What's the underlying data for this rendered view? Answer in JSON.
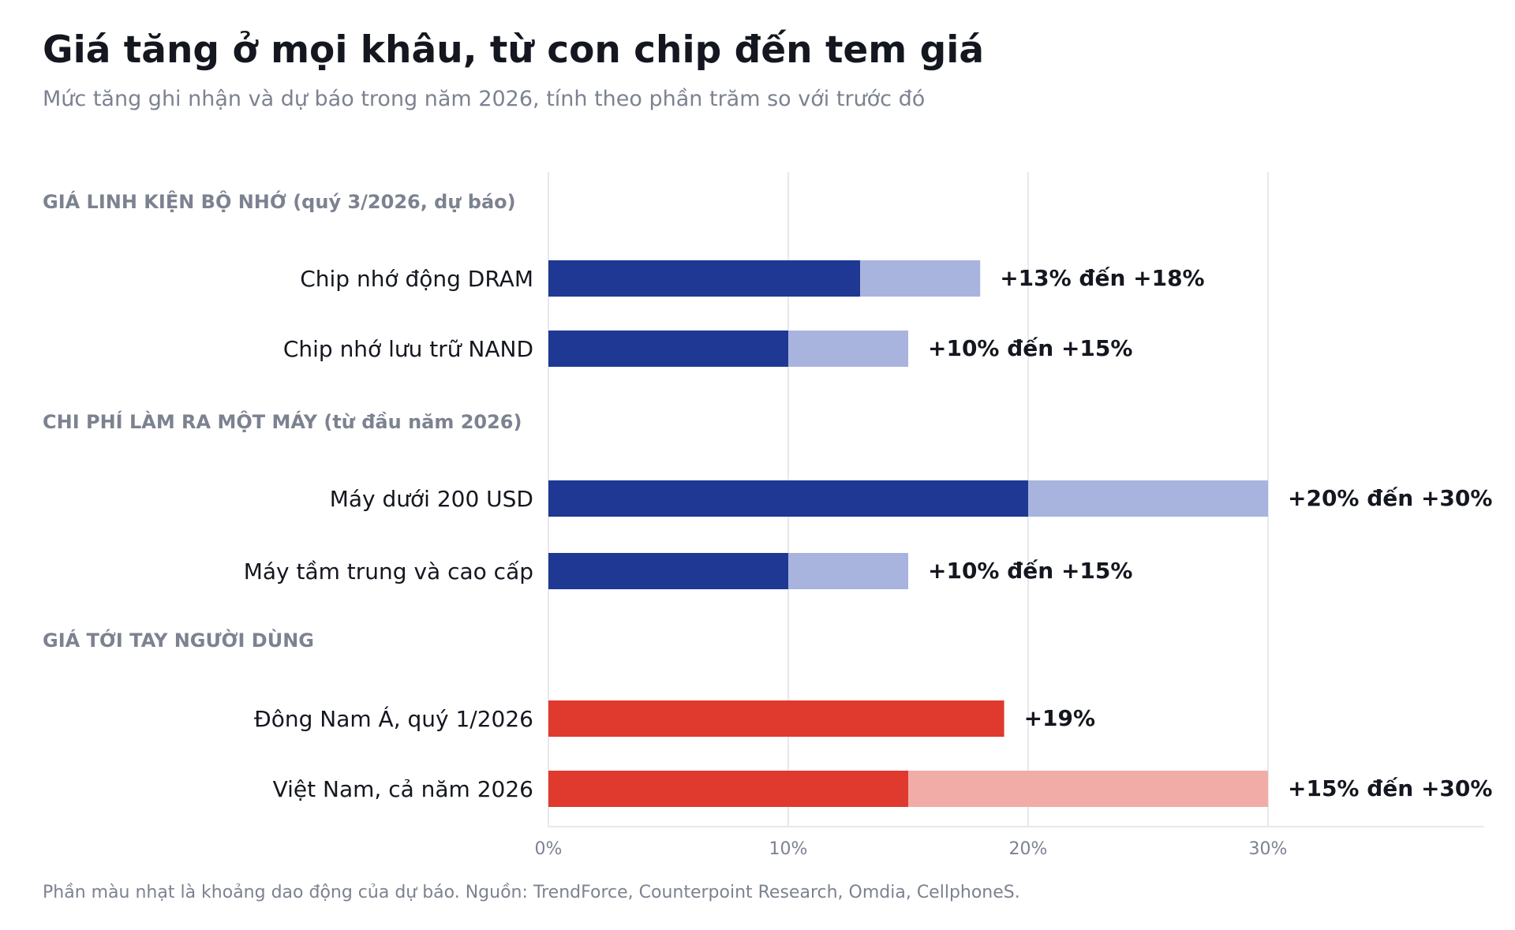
{
  "title": "Giá tăng ở mọi khâu, từ con chip đến tem giá",
  "subtitle": "Mức tăng ghi nhận và dự báo trong năm 2026, tính theo phần trăm so với trước đó",
  "footnote": "Phần màu nhạt là khoảng dao động của dự báo. Nguồn: TrendForce, Counterpoint Research, Omdia, CellphoneS.",
  "colors": {
    "blue_dark": "#1f3893",
    "blue_light": "#a8b4de",
    "red_dark": "#e0392e",
    "red_light": "#f2aca7",
    "section_text": "#7c8290",
    "label_text": "#14171f",
    "grid": "#e6e8ec"
  },
  "chart_data": {
    "type": "bar",
    "orientation": "horizontal",
    "stacked_range": true,
    "x_axis": {
      "ticks": [
        0,
        10,
        20,
        30
      ],
      "tick_labels": [
        "0%",
        "10%",
        "20%",
        "30%"
      ],
      "xlim": [
        0,
        39
      ],
      "grid": true
    },
    "groups": [
      {
        "section": "GIÁ LINH KIỆN BỘ NHỚ (quý 3/2026, dự báo)",
        "color": "blue",
        "items": [
          {
            "label": "Chip nhớ động DRAM",
            "low": 13,
            "high": 18,
            "value_label": "+13% đến +18%"
          },
          {
            "label": "Chip nhớ lưu trữ NAND",
            "low": 10,
            "high": 15,
            "value_label": "+10% đến +15%"
          }
        ]
      },
      {
        "section": "CHI PHÍ LÀM RA MỘT MÁY (từ đầu năm 2026)",
        "color": "blue",
        "items": [
          {
            "label": "Máy dưới 200 USD",
            "low": 20,
            "high": 30,
            "value_label": "+20% đến +30%"
          },
          {
            "label": "Máy tầm trung và cao cấp",
            "low": 10,
            "high": 15,
            "value_label": "+10% đến +15%"
          }
        ]
      },
      {
        "section": "GIÁ TỚI TAY NGƯỜI DÙNG",
        "color": "red",
        "items": [
          {
            "label": "Đông Nam Á, quý 1/2026",
            "low": 19,
            "high": 19,
            "value_label": "+19%"
          },
          {
            "label": "Việt Nam, cả năm 2026",
            "low": 15,
            "high": 30,
            "value_label": "+15% đến +30%"
          }
        ]
      }
    ]
  }
}
